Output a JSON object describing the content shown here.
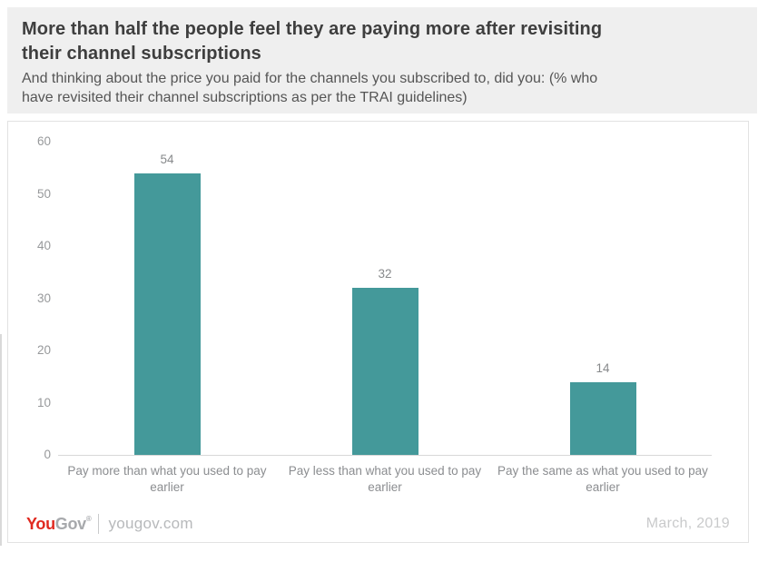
{
  "header": {
    "title_lines": [
      "More than half the people feel they are paying more after revisiting",
      "their channel subscriptions"
    ],
    "subtitle_lines": [
      "And thinking about the price you paid for the channels you subscribed to, did you: (% who",
      "have revisited their channel subscriptions as per the TRAI guidelines)"
    ]
  },
  "chart_data": {
    "type": "bar",
    "title": "More than half the people feel they are paying more after revisiting their channel subscriptions",
    "subtitle": "And thinking about the price you paid for the channels you subscribed to, did you: (% who have revisited their channel subscriptions as per the TRAI guidelines)",
    "categories": [
      "Pay more than what you used to pay earlier",
      "Pay less than what you used to pay earlier",
      "Pay the same as what you used to pay earlier"
    ],
    "values": [
      54,
      32,
      14
    ],
    "value_labels": [
      "54",
      "32",
      "14"
    ],
    "yticks": [
      60,
      50,
      40,
      30,
      20,
      10,
      0
    ],
    "ylim": [
      0,
      60
    ],
    "xlabel": "",
    "ylabel": "",
    "grid": false,
    "legend": "none",
    "bar_color": "#44999a",
    "axis_line_color": "#d8d8d8"
  },
  "footer": {
    "logo_you": "You",
    "logo_gov": "Gov",
    "logo_mark": "®",
    "site": "yougov.com",
    "date": "March, 2019",
    "brand_red": "#e0291f"
  }
}
